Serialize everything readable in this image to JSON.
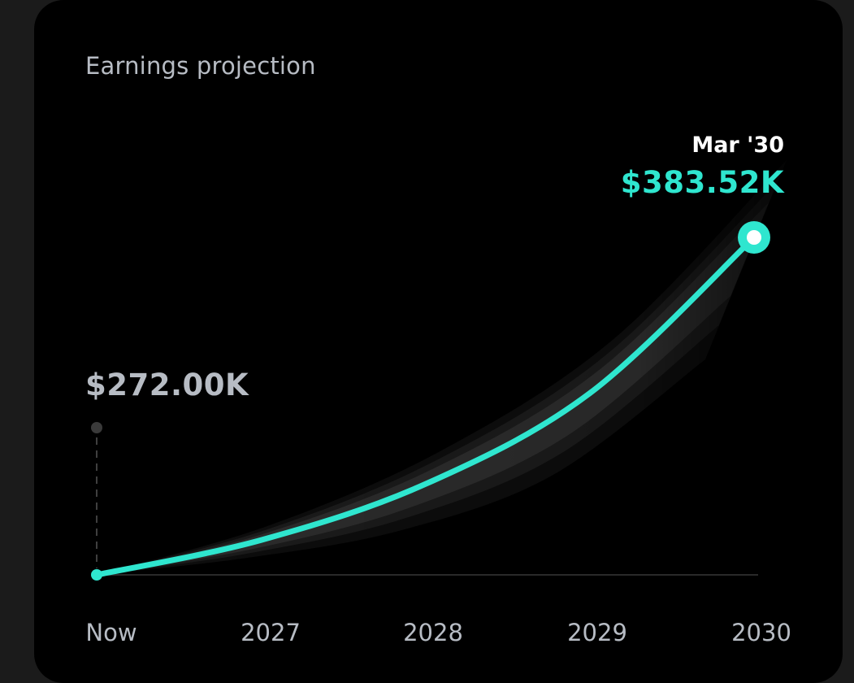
{
  "card": {
    "title": "Earnings projection"
  },
  "colors": {
    "background": "#000000",
    "accent": "#2fe6cf",
    "muted_text": "#b7bcc4",
    "tooltip_date": "#ffffff",
    "band": "#ffffff",
    "baseline": "#2a2a2a"
  },
  "chart_data": {
    "type": "line",
    "x_labels": [
      "Now",
      "2027",
      "2028",
      "2029",
      "2030"
    ],
    "series": [
      {
        "points": [
          {
            "x": "Now",
            "y": 272.0
          },
          {
            "x": "2027",
            "y": 283.5
          },
          {
            "x": "2028",
            "y": 302.0
          },
          {
            "x": "2029",
            "y": 332.0
          },
          {
            "x": "Mar '30",
            "y": 383.52
          }
        ]
      }
    ],
    "y_unit": "$K",
    "start_label": "$272.00K",
    "tooltip": {
      "date": "Mar '30",
      "value": "$383.52K"
    },
    "projection_range_visible": true,
    "grid": false
  }
}
